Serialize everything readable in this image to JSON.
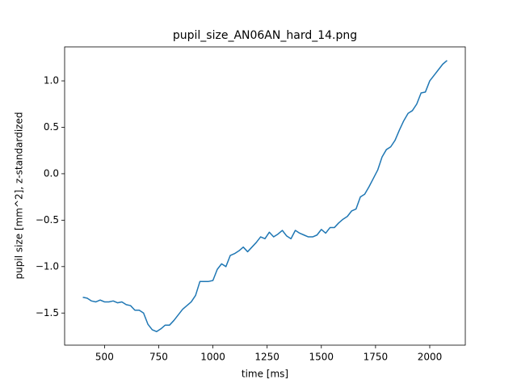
{
  "chart_data": {
    "type": "line",
    "title": "pupil_size_AN06AN_hard_14.png",
    "x_label": "time [ms]",
    "y_label": "pupil size [mm^2], z-standardized",
    "x": [
      400,
      420,
      440,
      460,
      480,
      500,
      520,
      540,
      560,
      580,
      600,
      620,
      640,
      660,
      680,
      700,
      720,
      740,
      760,
      780,
      800,
      820,
      840,
      860,
      880,
      900,
      920,
      940,
      960,
      980,
      1000,
      1020,
      1040,
      1060,
      1080,
      1100,
      1120,
      1140,
      1160,
      1180,
      1200,
      1220,
      1240,
      1260,
      1280,
      1300,
      1320,
      1340,
      1360,
      1380,
      1400,
      1420,
      1440,
      1460,
      1480,
      1500,
      1520,
      1540,
      1560,
      1580,
      1600,
      1620,
      1640,
      1660,
      1680,
      1700,
      1720,
      1740,
      1760,
      1780,
      1800,
      1820,
      1840,
      1860,
      1880,
      1900,
      1920,
      1940,
      1960,
      1980,
      2000,
      2020,
      2040,
      2060,
      2080
    ],
    "series": [
      {
        "color": "#1f77b4",
        "values": [
          -1.33,
          -1.34,
          -1.37,
          -1.38,
          -1.36,
          -1.38,
          -1.38,
          -1.37,
          -1.39,
          -1.38,
          -1.41,
          -1.42,
          -1.47,
          -1.47,
          -1.5,
          -1.62,
          -1.68,
          -1.7,
          -1.67,
          -1.63,
          -1.63,
          -1.58,
          -1.52,
          -1.46,
          -1.42,
          -1.38,
          -1.31,
          -1.16,
          -1.16,
          -1.16,
          -1.15,
          -1.03,
          -0.97,
          -1.0,
          -0.88,
          -0.86,
          -0.83,
          -0.79,
          -0.84,
          -0.79,
          -0.74,
          -0.68,
          -0.7,
          -0.63,
          -0.68,
          -0.65,
          -0.61,
          -0.67,
          -0.7,
          -0.61,
          -0.64,
          -0.66,
          -0.68,
          -0.68,
          -0.66,
          -0.6,
          -0.64,
          -0.58,
          -0.58,
          -0.53,
          -0.49,
          -0.46,
          -0.4,
          -0.38,
          -0.25,
          -0.22,
          -0.14,
          -0.05,
          0.04,
          0.18,
          0.26,
          0.29,
          0.36,
          0.47,
          0.57,
          0.65,
          0.68,
          0.75,
          0.87,
          0.88,
          1.0,
          1.06,
          1.12,
          1.18,
          1.22
        ]
      }
    ],
    "xlim": [
      316,
      2164
    ],
    "ylim": [
      -1.846,
      1.366
    ],
    "xticks": [
      500,
      750,
      1000,
      1250,
      1500,
      1750,
      2000
    ],
    "yticks": [
      {
        "value": -1.5,
        "label": "−1.5"
      },
      {
        "value": -1.0,
        "label": "−1.0"
      },
      {
        "value": -0.5,
        "label": "−0.5"
      },
      {
        "value": 0.0,
        "label": "0.0"
      },
      0.5,
      {
        "value": 1.0,
        "label": "1.0"
      }
    ],
    "grid": false
  }
}
